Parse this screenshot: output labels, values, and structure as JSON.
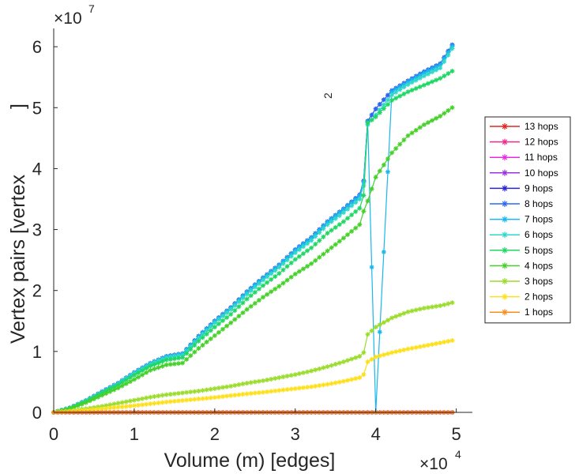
{
  "chart_data": {
    "type": "line",
    "xlabel": "Volume (m) [edges]",
    "ylabel": "Vertex pairs [vertex",
    "ylabel_superscript": "2",
    "ylabel_close": "]",
    "x_multiplier": {
      "base": "×10",
      "exp": "4"
    },
    "y_multiplier": {
      "base": "×10",
      "exp": "7"
    },
    "xlim": [
      0,
      52000
    ],
    "ylim": [
      0,
      63000000
    ],
    "xticks": [
      0,
      10000,
      20000,
      30000,
      40000,
      50000
    ],
    "xtick_labels": [
      "0",
      "1",
      "2",
      "3",
      "4",
      "5"
    ],
    "yticks": [
      0,
      10000000,
      20000000,
      30000000,
      40000000,
      50000000,
      60000000
    ],
    "ytick_labels": [
      "0",
      "1",
      "2",
      "3",
      "4",
      "5",
      "6"
    ],
    "x": [
      0,
      2000,
      4000,
      6000,
      8000,
      10000,
      12000,
      14000,
      16000,
      18000,
      20000,
      22000,
      24000,
      26000,
      28000,
      30000,
      32000,
      34000,
      36000,
      38000,
      38500,
      39000,
      40000,
      42000,
      44000,
      46000,
      48000,
      49500
    ],
    "legend_position": "east-outside",
    "series": [
      {
        "name": "1 hops",
        "color": "#f98c1d",
        "values": [
          0,
          0,
          0,
          0,
          0,
          0,
          0,
          0,
          0,
          0,
          0,
          0,
          0,
          0,
          0,
          0,
          0,
          0,
          0,
          0,
          0,
          0,
          0,
          0,
          0,
          0,
          0,
          0
        ]
      },
      {
        "name": "2 hops",
        "color": "#fde01b",
        "values": [
          0,
          150000,
          350000,
          600000,
          850000,
          1100000,
          1400000,
          1700000,
          1950000,
          2200000,
          2450000,
          2750000,
          3050000,
          3300000,
          3600000,
          3900000,
          4200000,
          4600000,
          5100000,
          5700000,
          6200000,
          8300000,
          9100000,
          9800000,
          10400000,
          10900000,
          11400000,
          11800000
        ]
      },
      {
        "name": "3 hops",
        "color": "#9bdc2d",
        "values": [
          0,
          250000,
          600000,
          1000000,
          1500000,
          2000000,
          2500000,
          2900000,
          3200000,
          3500000,
          3900000,
          4300000,
          4800000,
          5200000,
          5700000,
          6200000,
          6800000,
          7500000,
          8300000,
          9200000,
          9800000,
          12800000,
          14000000,
          15500000,
          16500000,
          17100000,
          17500000,
          18000000
        ]
      },
      {
        "name": "4 hops",
        "color": "#46d02a",
        "values": [
          0,
          600000,
          1600000,
          2800000,
          4000000,
          5400000,
          6900000,
          7800000,
          8100000,
          10500000,
          12600000,
          14700000,
          16900000,
          18900000,
          20700000,
          22700000,
          24400000,
          26500000,
          28600000,
          30800000,
          33000000,
          34700000,
          38600000,
          42600000,
          45400000,
          47200000,
          48600000,
          50000000
        ]
      },
      {
        "name": "5 hops",
        "color": "#1fd764",
        "values": [
          0,
          700000,
          1800000,
          3200000,
          4500000,
          6100000,
          7600000,
          8600000,
          9000000,
          11700000,
          14000000,
          16100000,
          18600000,
          20800000,
          22800000,
          25100000,
          27000000,
          29400000,
          31300000,
          33500000,
          35600000,
          47500000,
          48500000,
          51200000,
          52600000,
          53700000,
          54800000,
          56000000
        ]
      },
      {
        "name": "6 hops",
        "color": "#2ed8c9",
        "values": [
          0,
          720000,
          1900000,
          3300000,
          4700000,
          6400000,
          7900000,
          9000000,
          9400000,
          12200000,
          14700000,
          16900000,
          19400000,
          21700000,
          23800000,
          26200000,
          28200000,
          30800000,
          32800000,
          35000000,
          37200000,
          47200000,
          48800000,
          52100000,
          53800000,
          55200000,
          56500000,
          59700000
        ]
      },
      {
        "name": "7 hops",
        "color": "#19b6ef",
        "values": [
          0,
          730000,
          1950000,
          3350000,
          4750000,
          6500000,
          8000000,
          9150000,
          9600000,
          12400000,
          14900000,
          17100000,
          19700000,
          22000000,
          24100000,
          26600000,
          28600000,
          31200000,
          33300000,
          35500000,
          37800000,
          47600000,
          49500,
          52600000,
          54200000,
          55700000,
          57000000,
          60100000
        ]
      },
      {
        "name": "8 hops",
        "color": "#2a6af0",
        "values": [
          0,
          740000,
          1950000,
          3400000,
          4800000,
          6550000,
          8050000,
          9200000,
          9650000,
          12500000,
          15000000,
          17200000,
          19800000,
          22100000,
          24200000,
          26700000,
          28700000,
          31300000,
          33400000,
          35700000,
          38000000,
          47800000,
          49800000,
          52800000,
          54400000,
          55900000,
          57200000,
          60300000
        ]
      },
      {
        "name": "9 hops",
        "color": "#2a24d6",
        "values": [
          0,
          740000,
          1950000,
          3400000,
          4800000,
          6550000,
          8050000,
          9200000,
          9650000,
          12500000,
          15000000,
          17200000,
          19800000,
          22100000,
          24200000,
          26700000,
          28700000,
          31300000,
          33400000,
          35700000,
          38000000,
          47800000,
          49800000,
          52800000,
          54400000,
          55900000,
          57200000,
          60300000
        ]
      },
      {
        "name": "10 hops",
        "color": "#9b30e0",
        "values": [
          0,
          0,
          0,
          0,
          0,
          0,
          0,
          0,
          0,
          0,
          0,
          0,
          0,
          0,
          0,
          0,
          0,
          0,
          0,
          0,
          0,
          0,
          0,
          0,
          0,
          0,
          0,
          0
        ]
      },
      {
        "name": "11 hops",
        "color": "#e42be3",
        "values": [
          0,
          0,
          0,
          0,
          0,
          0,
          0,
          0,
          0,
          0,
          0,
          0,
          0,
          0,
          0,
          0,
          0,
          0,
          0,
          0,
          0,
          0,
          0,
          0,
          0,
          0,
          0,
          0
        ]
      },
      {
        "name": "12 hops",
        "color": "#f32a8c",
        "values": [
          0,
          0,
          0,
          0,
          0,
          0,
          0,
          0,
          0,
          0,
          0,
          0,
          0,
          0,
          0,
          0,
          0,
          0,
          0,
          0,
          0,
          0,
          0,
          0,
          0,
          0,
          0,
          0
        ]
      },
      {
        "name": "13 hops",
        "color": "#e52320",
        "values": [
          0,
          0,
          0,
          0,
          0,
          0,
          0,
          0,
          0,
          0,
          0,
          0,
          0,
          0,
          0,
          0,
          0,
          0,
          0,
          0,
          0,
          0,
          0,
          0,
          0,
          0,
          0,
          0
        ]
      }
    ]
  }
}
